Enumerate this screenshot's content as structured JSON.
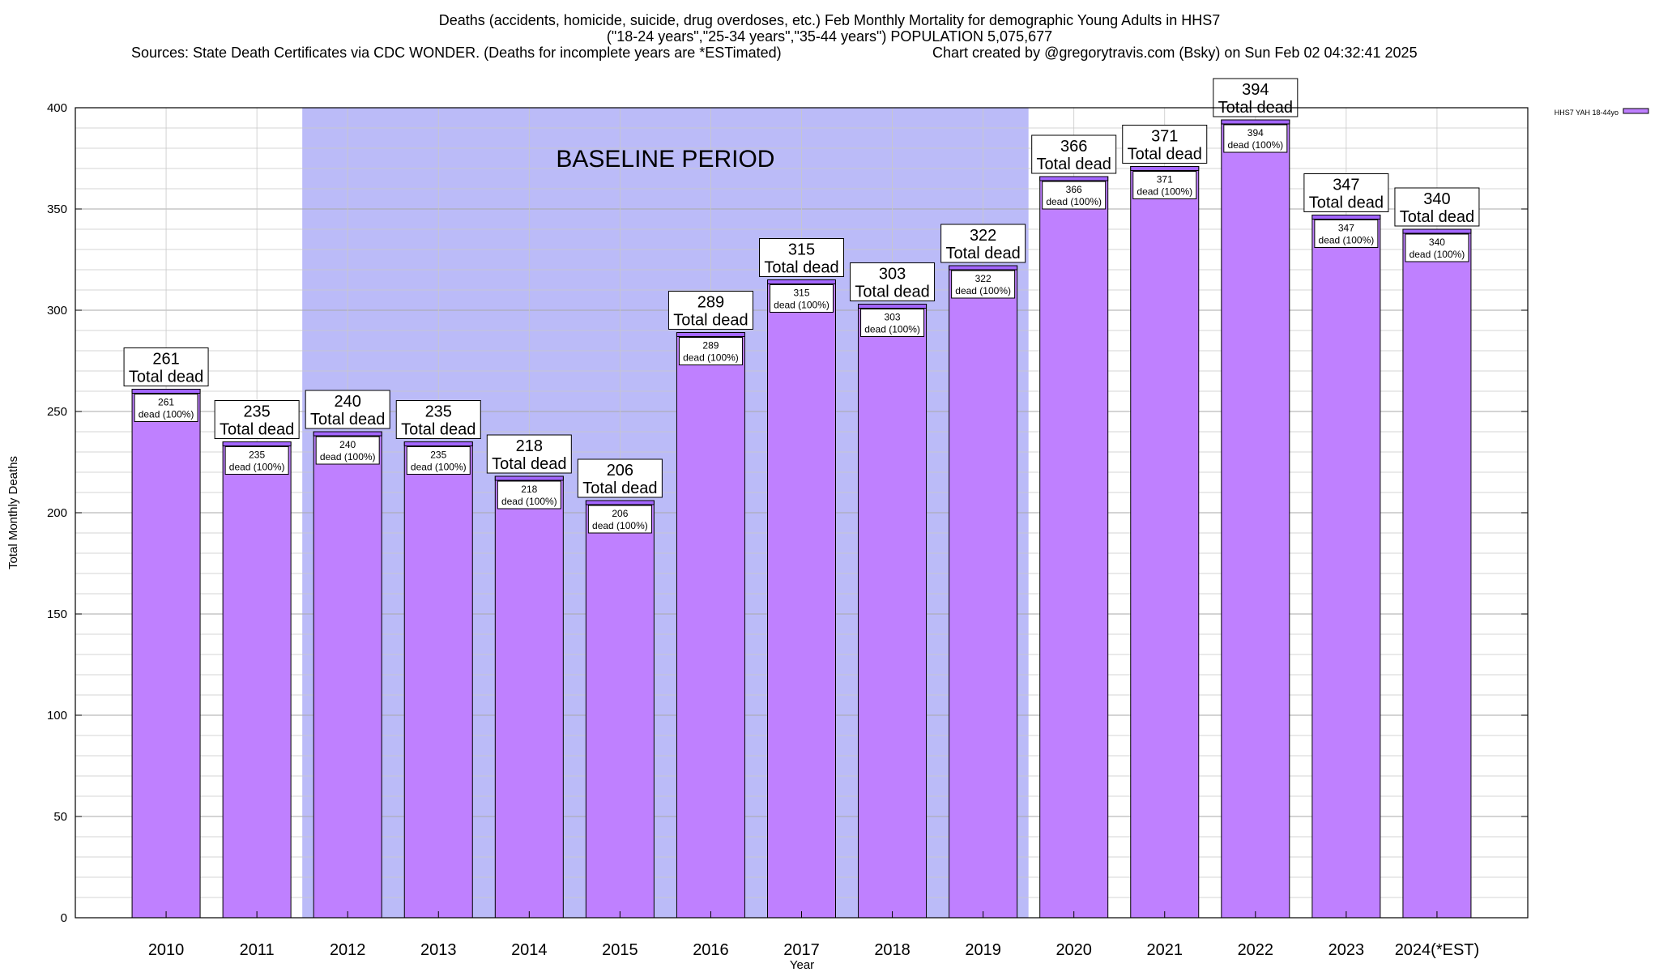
{
  "titles": {
    "line1": "Deaths (accidents, homicide, suicide, drug overdoses, etc.) Feb Monthly Mortality for demographic Young Adults in HHS7",
    "line2": "(\"18-24 years\",\"25-34 years\",\"35-44 years\") POPULATION 5,075,677",
    "line3": "Sources: State Death Certificates via CDC WONDER. (Deaths for incomplete years are *ESTimated)",
    "line4": "Chart created by @gregorytravis.com (Bsky) on Sun Feb 02 04:32:41 2025"
  },
  "chart_data": {
    "type": "bar",
    "categories": [
      "2010",
      "2011",
      "2012",
      "2013",
      "2014",
      "2015",
      "2016",
      "2017",
      "2018",
      "2019",
      "2020",
      "2021",
      "2022",
      "2023",
      "2024(*EST)"
    ],
    "series": [
      {
        "name": "HHS7 YAH 18-44yo",
        "values": [
          261,
          235,
          240,
          235,
          218,
          206,
          289,
          315,
          303,
          322,
          366,
          371,
          394,
          347,
          340
        ],
        "color": "#bf80ff"
      }
    ],
    "value_labels_top_suffix": "Total dead",
    "value_labels_inner_suffix": "dead (100%)",
    "xlabel": "Year",
    "ylabel": "Total Monthly Deaths",
    "ylim": [
      0,
      400
    ],
    "yticks": [
      0,
      50,
      100,
      150,
      200,
      250,
      300,
      350,
      400
    ],
    "grid": true,
    "legend": "top-right",
    "shaded_region": {
      "label": "BASELINE PERIOD",
      "from": "2012",
      "to": "2019",
      "color": "#bbbbf8"
    },
    "colors": {
      "bar_fill": "#bf80ff",
      "bar_top_band": "#a366ff",
      "baseline": "#bbbbf8"
    }
  }
}
